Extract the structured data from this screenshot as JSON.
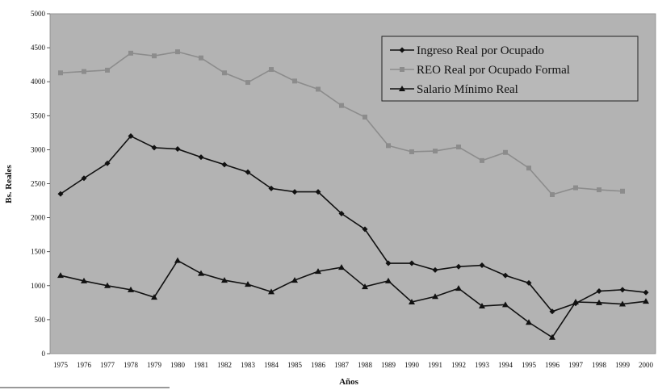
{
  "chart_data": {
    "type": "line",
    "x_label": "Años",
    "y_label": "Bs. Reales",
    "categories": [
      "1975",
      "1976",
      "1977",
      "1978",
      "1979",
      "1980",
      "1981",
      "1982",
      "1983",
      "1984",
      "1985",
      "1986",
      "1987",
      "1988",
      "1989",
      "1990",
      "1991",
      "1992",
      "1993",
      "1994",
      "1995",
      "1996",
      "1997",
      "1998",
      "1999",
      "2000"
    ],
    "ylim": [
      0,
      5000
    ],
    "yticks": [
      0,
      500,
      1000,
      1500,
      2000,
      2500,
      3000,
      3500,
      4000,
      4500,
      5000
    ],
    "legend": "upper right",
    "series": [
      {
        "name": "Ingreso Real por Ocupado",
        "color": "#111111",
        "marker": "diamond",
        "values": [
          2350,
          2580,
          2800,
          3200,
          3030,
          3010,
          2890,
          2780,
          2670,
          2430,
          2380,
          2380,
          2060,
          1830,
          1330,
          1330,
          1230,
          1280,
          1300,
          1150,
          1040,
          620,
          740,
          920,
          940,
          900
        ]
      },
      {
        "name": "REO Real por Ocupado Formal",
        "color": "#8c8c8c",
        "marker": "square",
        "values": [
          4130,
          4150,
          4170,
          4420,
          4380,
          4440,
          4350,
          4130,
          3990,
          4180,
          4010,
          3890,
          3650,
          3480,
          3060,
          2970,
          2980,
          3040,
          2840,
          2960,
          2730,
          2340,
          2440,
          2410,
          2390,
          null
        ]
      },
      {
        "name": "Salario Mínimo Real",
        "color": "#111111",
        "marker": "triangle",
        "values": [
          1150,
          1070,
          1000,
          940,
          830,
          1370,
          1180,
          1080,
          1020,
          910,
          1080,
          1210,
          1270,
          985,
          1070,
          760,
          840,
          960,
          700,
          720,
          460,
          240,
          760,
          750,
          730,
          770
        ]
      }
    ]
  }
}
